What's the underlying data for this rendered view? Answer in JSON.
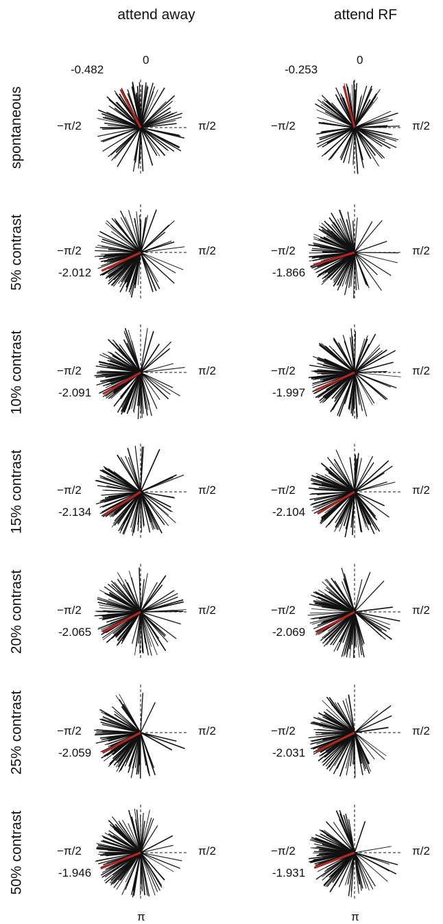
{
  "columns": [
    "attend away",
    "attend RF"
  ],
  "rows": [
    "spontaneous",
    "5% contrast",
    "10% contrast",
    "15% contrast",
    "20% contrast",
    "25% contrast",
    "50% contrast"
  ],
  "axis_labels": {
    "top": "0",
    "left": "−π/2",
    "right": "π/2",
    "bottom": "π"
  },
  "colors": {
    "lines": "#111111",
    "mean": "#b3261e",
    "axes": "#111111"
  },
  "chart_data": {
    "type": "polar-line-plot",
    "angle_unit": "radians",
    "angle_zero": "top",
    "panels": [
      {
        "row": "spontaneous",
        "column": "attend away",
        "mean_phase": -0.482,
        "mean_label": "-0.482"
      },
      {
        "row": "spontaneous",
        "column": "attend RF",
        "mean_phase": -0.253,
        "mean_label": "-0.253"
      },
      {
        "row": "5% contrast",
        "column": "attend away",
        "mean_phase": -2.012,
        "mean_label": "-2.012"
      },
      {
        "row": "5% contrast",
        "column": "attend RF",
        "mean_phase": -1.866,
        "mean_label": "-1.866"
      },
      {
        "row": "10% contrast",
        "column": "attend away",
        "mean_phase": -2.091,
        "mean_label": "-2.091"
      },
      {
        "row": "10% contrast",
        "column": "attend RF",
        "mean_phase": -1.997,
        "mean_label": "-1.997"
      },
      {
        "row": "15% contrast",
        "column": "attend away",
        "mean_phase": -2.134,
        "mean_label": "-2.134"
      },
      {
        "row": "15% contrast",
        "column": "attend RF",
        "mean_phase": -2.104,
        "mean_label": "-2.104"
      },
      {
        "row": "20% contrast",
        "column": "attend away",
        "mean_phase": -2.065,
        "mean_label": "-2.065"
      },
      {
        "row": "20% contrast",
        "column": "attend RF",
        "mean_phase": -2.069,
        "mean_label": "-2.069"
      },
      {
        "row": "25% contrast",
        "column": "attend away",
        "mean_phase": -2.059,
        "mean_label": "-2.059"
      },
      {
        "row": "25% contrast",
        "column": "attend RF",
        "mean_phase": -2.031,
        "mean_label": "-2.031"
      },
      {
        "row": "50% contrast",
        "column": "attend away",
        "mean_phase": -1.946,
        "mean_label": "-1.946"
      },
      {
        "row": "50% contrast",
        "column": "attend RF",
        "mean_phase": -1.931,
        "mean_label": "-1.931"
      }
    ]
  }
}
